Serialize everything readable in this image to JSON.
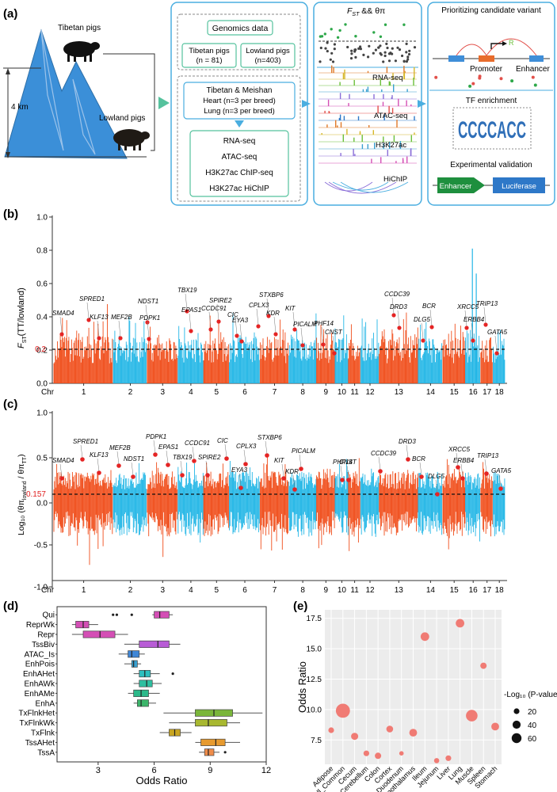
{
  "panel_a": {
    "label": "(a)",
    "mountain": {
      "tibetan_label": "Tibetan pigs",
      "lowland_label": "Lowland pigs",
      "altitude": "4 km"
    },
    "genomics": {
      "title": "Genomics data",
      "tibetan": {
        "name": "Tibetan pigs",
        "n": "(n = 81)"
      },
      "lowland": {
        "name": "Lowland pigs",
        "n": "(n=403)"
      }
    },
    "tissue": {
      "line1": "Tibetan & Meishan",
      "line2": "Heart (n=3 per breed)",
      "line3": "Lung (n=3 per breed)"
    },
    "assays": [
      "RNA-seq",
      "ATAC-seq",
      "H3K27ac ChIP-seq",
      "H3K27ac HiChIP"
    ],
    "tracks": {
      "title": "F",
      "title_sub": "ST",
      "title_rest": " && θπ",
      "labels": [
        "RNA-seq",
        "ATAC-seq",
        "H3K27ac",
        "HiChIP"
      ]
    },
    "priority": {
      "title": "Prioritizing candidate variant",
      "promoter": "Promoter",
      "enhancer": "Enhancer",
      "tf_title": "TF enrichment",
      "motif": "CCCCACC",
      "exp_title": "Experimental validation",
      "enhancer_box": "Enhancer",
      "luciferase_box": "Luciferase"
    }
  },
  "panel_b": {
    "label": "(b)",
    "ylabel": "F",
    "ylabel_sub": "ST",
    "ylabel_rest": "(TT/lowland)",
    "yticks": [
      "0.0",
      "0.2",
      "0.4",
      "0.6",
      "0.8",
      "1.0"
    ],
    "threshold": "0.2",
    "chr_label": "Chr",
    "chromosomes": [
      "1",
      "2",
      "3",
      "4",
      "5",
      "6",
      "7",
      "8",
      "9",
      "10",
      "11",
      "12",
      "13",
      "14",
      "15",
      "16",
      "17",
      "18"
    ],
    "genes": [
      "SPRED1",
      "SMAD4",
      "KLF13",
      "MEF2B",
      "NDST1",
      "PDPK1",
      "EPAS1",
      "TBX19",
      "CCDC91",
      "SPIRE2",
      "CIC",
      "EYA3",
      "CPLX3",
      "STXBP6",
      "KDR",
      "KIT",
      "PICALM",
      "PHF14",
      "CNST",
      "CCDC39",
      "DRD3",
      "BCR",
      "DLG5",
      "XRCC5",
      "ERBB4",
      "TRIP13",
      "GATA5"
    ]
  },
  "panel_c": {
    "label": "(c)",
    "ylabel": "Log₁₀ (θπ",
    "ylabel_sub1": "lowland",
    "ylabel_mid": " / θπ",
    "ylabel_sub2": "TT",
    "ylabel_end": ")",
    "yticks": [
      "-1.0",
      "-0.5",
      "0.0",
      "0.5",
      "1.0"
    ],
    "threshold": "0.157",
    "chr_label": "Chr",
    "genes": [
      "SPRED1",
      "SMAD4",
      "KLF13",
      "MEF2B",
      "NDST1",
      "PDPK1",
      "EPAS1",
      "TBX19",
      "CCDC91",
      "SPIRE2",
      "CIC",
      "EYA3",
      "CPLX3",
      "STXBP6",
      "KIT",
      "KDR",
      "PICALM",
      "PHF14",
      "CNST",
      "CCDC39",
      "DRD3",
      "BCR",
      "DLG5",
      "XRCC5",
      "ERBB4",
      "TRIP13",
      "GATA5"
    ]
  },
  "chart_data": [
    {
      "panel": "d",
      "label": "(d)",
      "type": "box",
      "xlabel": "Odds Ratio",
      "xticks": [
        3,
        6,
        9,
        12
      ],
      "xlim": [
        0.8,
        12
      ],
      "series": [
        {
          "name": "Qui",
          "min": 5.9,
          "q1": 6.0,
          "median": 6.3,
          "q3": 6.8,
          "max": 7.0,
          "color": "#d44fb5",
          "outliers": [
            3.8,
            4.0,
            4.8
          ]
        },
        {
          "name": "ReprWk",
          "min": 1.6,
          "q1": 1.8,
          "median": 2.2,
          "q3": 2.5,
          "max": 3.0,
          "color": "#d44fb5",
          "outliers": []
        },
        {
          "name": "Repr",
          "min": 1.6,
          "q1": 2.2,
          "median": 3.1,
          "q3": 3.9,
          "max": 4.6,
          "color": "#d44fb5",
          "outliers": []
        },
        {
          "name": "TssBiv",
          "min": 4.4,
          "q1": 5.2,
          "median": 6.2,
          "q3": 6.8,
          "max": 7.4,
          "color": "#b85cd6",
          "outliers": []
        },
        {
          "name": "ATAC_Is",
          "min": 4.1,
          "q1": 4.6,
          "median": 4.8,
          "q3": 5.2,
          "max": 5.5,
          "color": "#3f86d6",
          "outliers": []
        },
        {
          "name": "EnhPois",
          "min": 4.4,
          "q1": 4.8,
          "median": 4.9,
          "q3": 5.1,
          "max": 5.3,
          "color": "#3aa0d0",
          "outliers": []
        },
        {
          "name": "EnhAHet",
          "min": 4.9,
          "q1": 5.2,
          "median": 5.5,
          "q3": 5.8,
          "max": 6.3,
          "color": "#2dbfbf",
          "outliers": [
            7.0
          ]
        },
        {
          "name": "EnhAWk",
          "min": 4.9,
          "q1": 5.2,
          "median": 5.6,
          "q3": 5.9,
          "max": 6.4,
          "color": "#2dbfa0",
          "outliers": []
        },
        {
          "name": "EnhAMe",
          "min": 4.6,
          "q1": 4.9,
          "median": 5.3,
          "q3": 5.7,
          "max": 6.3,
          "color": "#2cb98a",
          "outliers": []
        },
        {
          "name": "EnhA",
          "min": 4.9,
          "q1": 5.1,
          "median": 5.3,
          "q3": 5.7,
          "max": 6.1,
          "color": "#3bb56a",
          "outliers": []
        },
        {
          "name": "TxFlnkHet",
          "min": 6.5,
          "q1": 8.2,
          "median": 9.2,
          "q3": 10.2,
          "max": 11.8,
          "color": "#7ab63a",
          "outliers": []
        },
        {
          "name": "TxFlnkWk",
          "min": 6.8,
          "q1": 8.2,
          "median": 8.9,
          "q3": 9.9,
          "max": 10.6,
          "color": "#a8b830",
          "outliers": []
        },
        {
          "name": "TxFlnk",
          "min": 6.3,
          "q1": 6.8,
          "median": 7.1,
          "q3": 7.4,
          "max": 8.0,
          "color": "#c8a520",
          "outliers": []
        },
        {
          "name": "TssAHet",
          "min": 8.2,
          "q1": 8.5,
          "median": 9.3,
          "q3": 9.8,
          "max": 10.6,
          "color": "#e79a2e",
          "outliers": []
        },
        {
          "name": "TssA",
          "min": 8.4,
          "q1": 8.7,
          "median": 8.9,
          "q3": 9.2,
          "max": 9.5,
          "color": "#ef8c4a",
          "outliers": [
            9.8
          ]
        }
      ]
    },
    {
      "panel": "e",
      "label": "(e)",
      "type": "scatter",
      "xlabel": "",
      "ylabel": "Odds Ratio",
      "ylim": [
        5.5,
        18.2
      ],
      "yticks": [
        7.5,
        10.0,
        12.5,
        15.0,
        17.5
      ],
      "categories": [
        "Adipose",
        "All_Common",
        "Cecum",
        "Cerebellum",
        "Colon",
        "Cortex",
        "Duodenum",
        "Hypothalamus",
        "Ileum",
        "Jejunum",
        "Liver",
        "Lung",
        "Muscle",
        "Spleen",
        "Stomach"
      ],
      "values": [
        8.3,
        9.9,
        7.8,
        6.4,
        6.2,
        8.4,
        6.4,
        8.1,
        16.0,
        5.8,
        6.0,
        17.1,
        9.5,
        13.6,
        8.6
      ],
      "sizes": [
        10,
        60,
        15,
        10,
        12,
        14,
        6,
        18,
        22,
        8,
        10,
        22,
        40,
        12,
        18
      ],
      "point_color": "#f07b74",
      "legend_title": "-Log₁₀ (P-value)",
      "legend_values": [
        "20",
        "40",
        "60"
      ]
    }
  ]
}
